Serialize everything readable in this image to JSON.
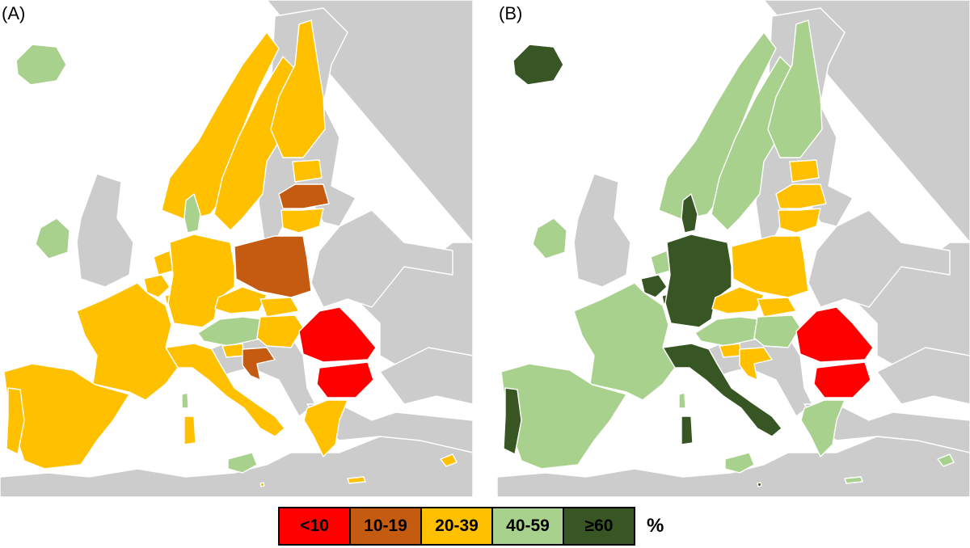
{
  "colors": {
    "background_land": "#cccccc",
    "sea": "#ffffff",
    "border": "#ffffff"
  },
  "legend": {
    "unit": "%",
    "classes": [
      {
        "label": "<10",
        "color": "#ff0000"
      },
      {
        "label": "10-19",
        "color": "#c55a11"
      },
      {
        "label": "20-39",
        "color": "#ffc000"
      },
      {
        "label": "40-59",
        "color": "#a9d18e"
      },
      {
        "label": "≥60",
        "color": "#375623"
      }
    ]
  },
  "panels": [
    {
      "label": "(A)",
      "classes": {
        "iceland": "40-59",
        "ireland": "40-59",
        "norway": "20-39",
        "sweden": "20-39",
        "finland": "20-39",
        "estonia": "20-39",
        "latvia": "10-19",
        "lithuania": "20-39",
        "denmark": "40-59",
        "netherlands": "20-39",
        "belgium": "20-39",
        "luxembourg": "20-39",
        "germany": "20-39",
        "poland": "10-19",
        "czechia": "20-39",
        "slovakia": "20-39",
        "austria": "40-59",
        "hungary": "20-39",
        "slovenia": "20-39",
        "croatia": "10-19",
        "romania": "<10",
        "bulgaria": "<10",
        "greece": "20-39",
        "italy": "20-39",
        "sardinia": "20-39",
        "corsica": "40-59",
        "sicily": "40-59",
        "france": "20-39",
        "spain": "20-39",
        "portugal": "20-39",
        "cyprus": "20-39",
        "malta": "20-39",
        "crete": "20-39"
      }
    },
    {
      "label": "(B)",
      "classes": {
        "iceland": "≥60",
        "ireland": "40-59",
        "norway": "40-59",
        "sweden": "40-59",
        "finland": "40-59",
        "estonia": "20-39",
        "latvia": "20-39",
        "lithuania": "20-39",
        "denmark": "≥60",
        "netherlands": "40-59",
        "belgium": "≥60",
        "luxembourg": "≥60",
        "germany": "≥60",
        "poland": "20-39",
        "czechia": "20-39",
        "slovakia": "20-39",
        "austria": "40-59",
        "hungary": "40-59",
        "slovenia": "20-39",
        "croatia": "20-39",
        "romania": "<10",
        "bulgaria": "<10",
        "greece": "40-59",
        "italy": "≥60",
        "sardinia": "≥60",
        "corsica": "40-59",
        "sicily": "40-59",
        "france": "40-59",
        "spain": "40-59",
        "portugal": "≥60",
        "cyprus": "40-59",
        "malta": "≥60",
        "crete": "40-59"
      }
    }
  ]
}
